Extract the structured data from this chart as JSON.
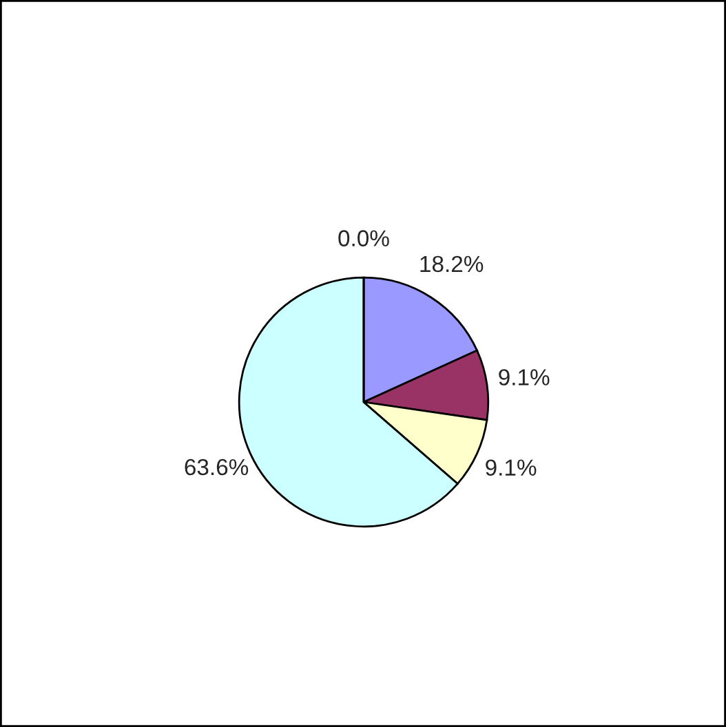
{
  "chart_data": {
    "type": "pie",
    "categories": [
      null,
      null,
      null,
      null,
      null
    ],
    "values": [
      18.2,
      9.1,
      9.1,
      63.6,
      0.0
    ],
    "colors": [
      "#9999ff",
      "#993366",
      "#ffffcc",
      "#ccffff",
      "#660066"
    ],
    "value_labels": [
      "18.2%",
      "9.1%",
      "9.1%",
      "63.6%",
      "0.0%"
    ],
    "legend": false
  }
}
